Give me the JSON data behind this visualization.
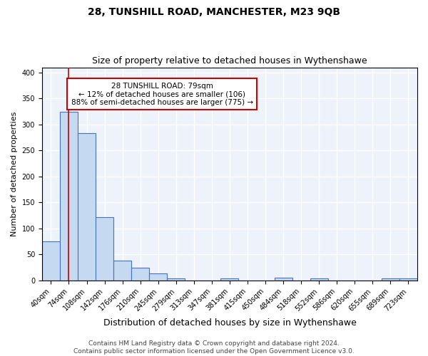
{
  "title1": "28, TUNSHILL ROAD, MANCHESTER, M23 9QB",
  "title2": "Size of property relative to detached houses in Wythenshawe",
  "xlabel": "Distribution of detached houses by size in Wythenshawe",
  "ylabel": "Number of detached properties",
  "categories": [
    "40sqm",
    "74sqm",
    "108sqm",
    "142sqm",
    "176sqm",
    "210sqm",
    "245sqm",
    "279sqm",
    "313sqm",
    "347sqm",
    "381sqm",
    "415sqm",
    "450sqm",
    "484sqm",
    "518sqm",
    "552sqm",
    "586sqm",
    "620sqm",
    "655sqm",
    "689sqm",
    "723sqm"
  ],
  "values": [
    75,
    325,
    283,
    122,
    38,
    25,
    14,
    4,
    0,
    0,
    4,
    0,
    0,
    5,
    0,
    4,
    0,
    0,
    0,
    4,
    4
  ],
  "bar_color": "#c5d9f0",
  "bar_edge_color": "#4472c4",
  "background_color": "#eef3fb",
  "grid_color": "#ffffff",
  "red_line_x": 1,
  "annotation_text": "28 TUNSHILL ROAD: 79sqm\n← 12% of detached houses are smaller (106)\n88% of semi-detached houses are larger (775) →",
  "annotation_box_color": "#ffffff",
  "annotation_box_edge_color": "#cc0000",
  "ylim": [
    0,
    410
  ],
  "footnote": "Contains HM Land Registry data © Crown copyright and database right 2024.\nContains public sector information licensed under the Open Government Licence v3.0.",
  "title1_fontsize": 10,
  "title2_fontsize": 9,
  "xlabel_fontsize": 9,
  "ylabel_fontsize": 8,
  "tick_fontsize": 7,
  "annotation_fontsize": 7.5,
  "footnote_fontsize": 6.5
}
